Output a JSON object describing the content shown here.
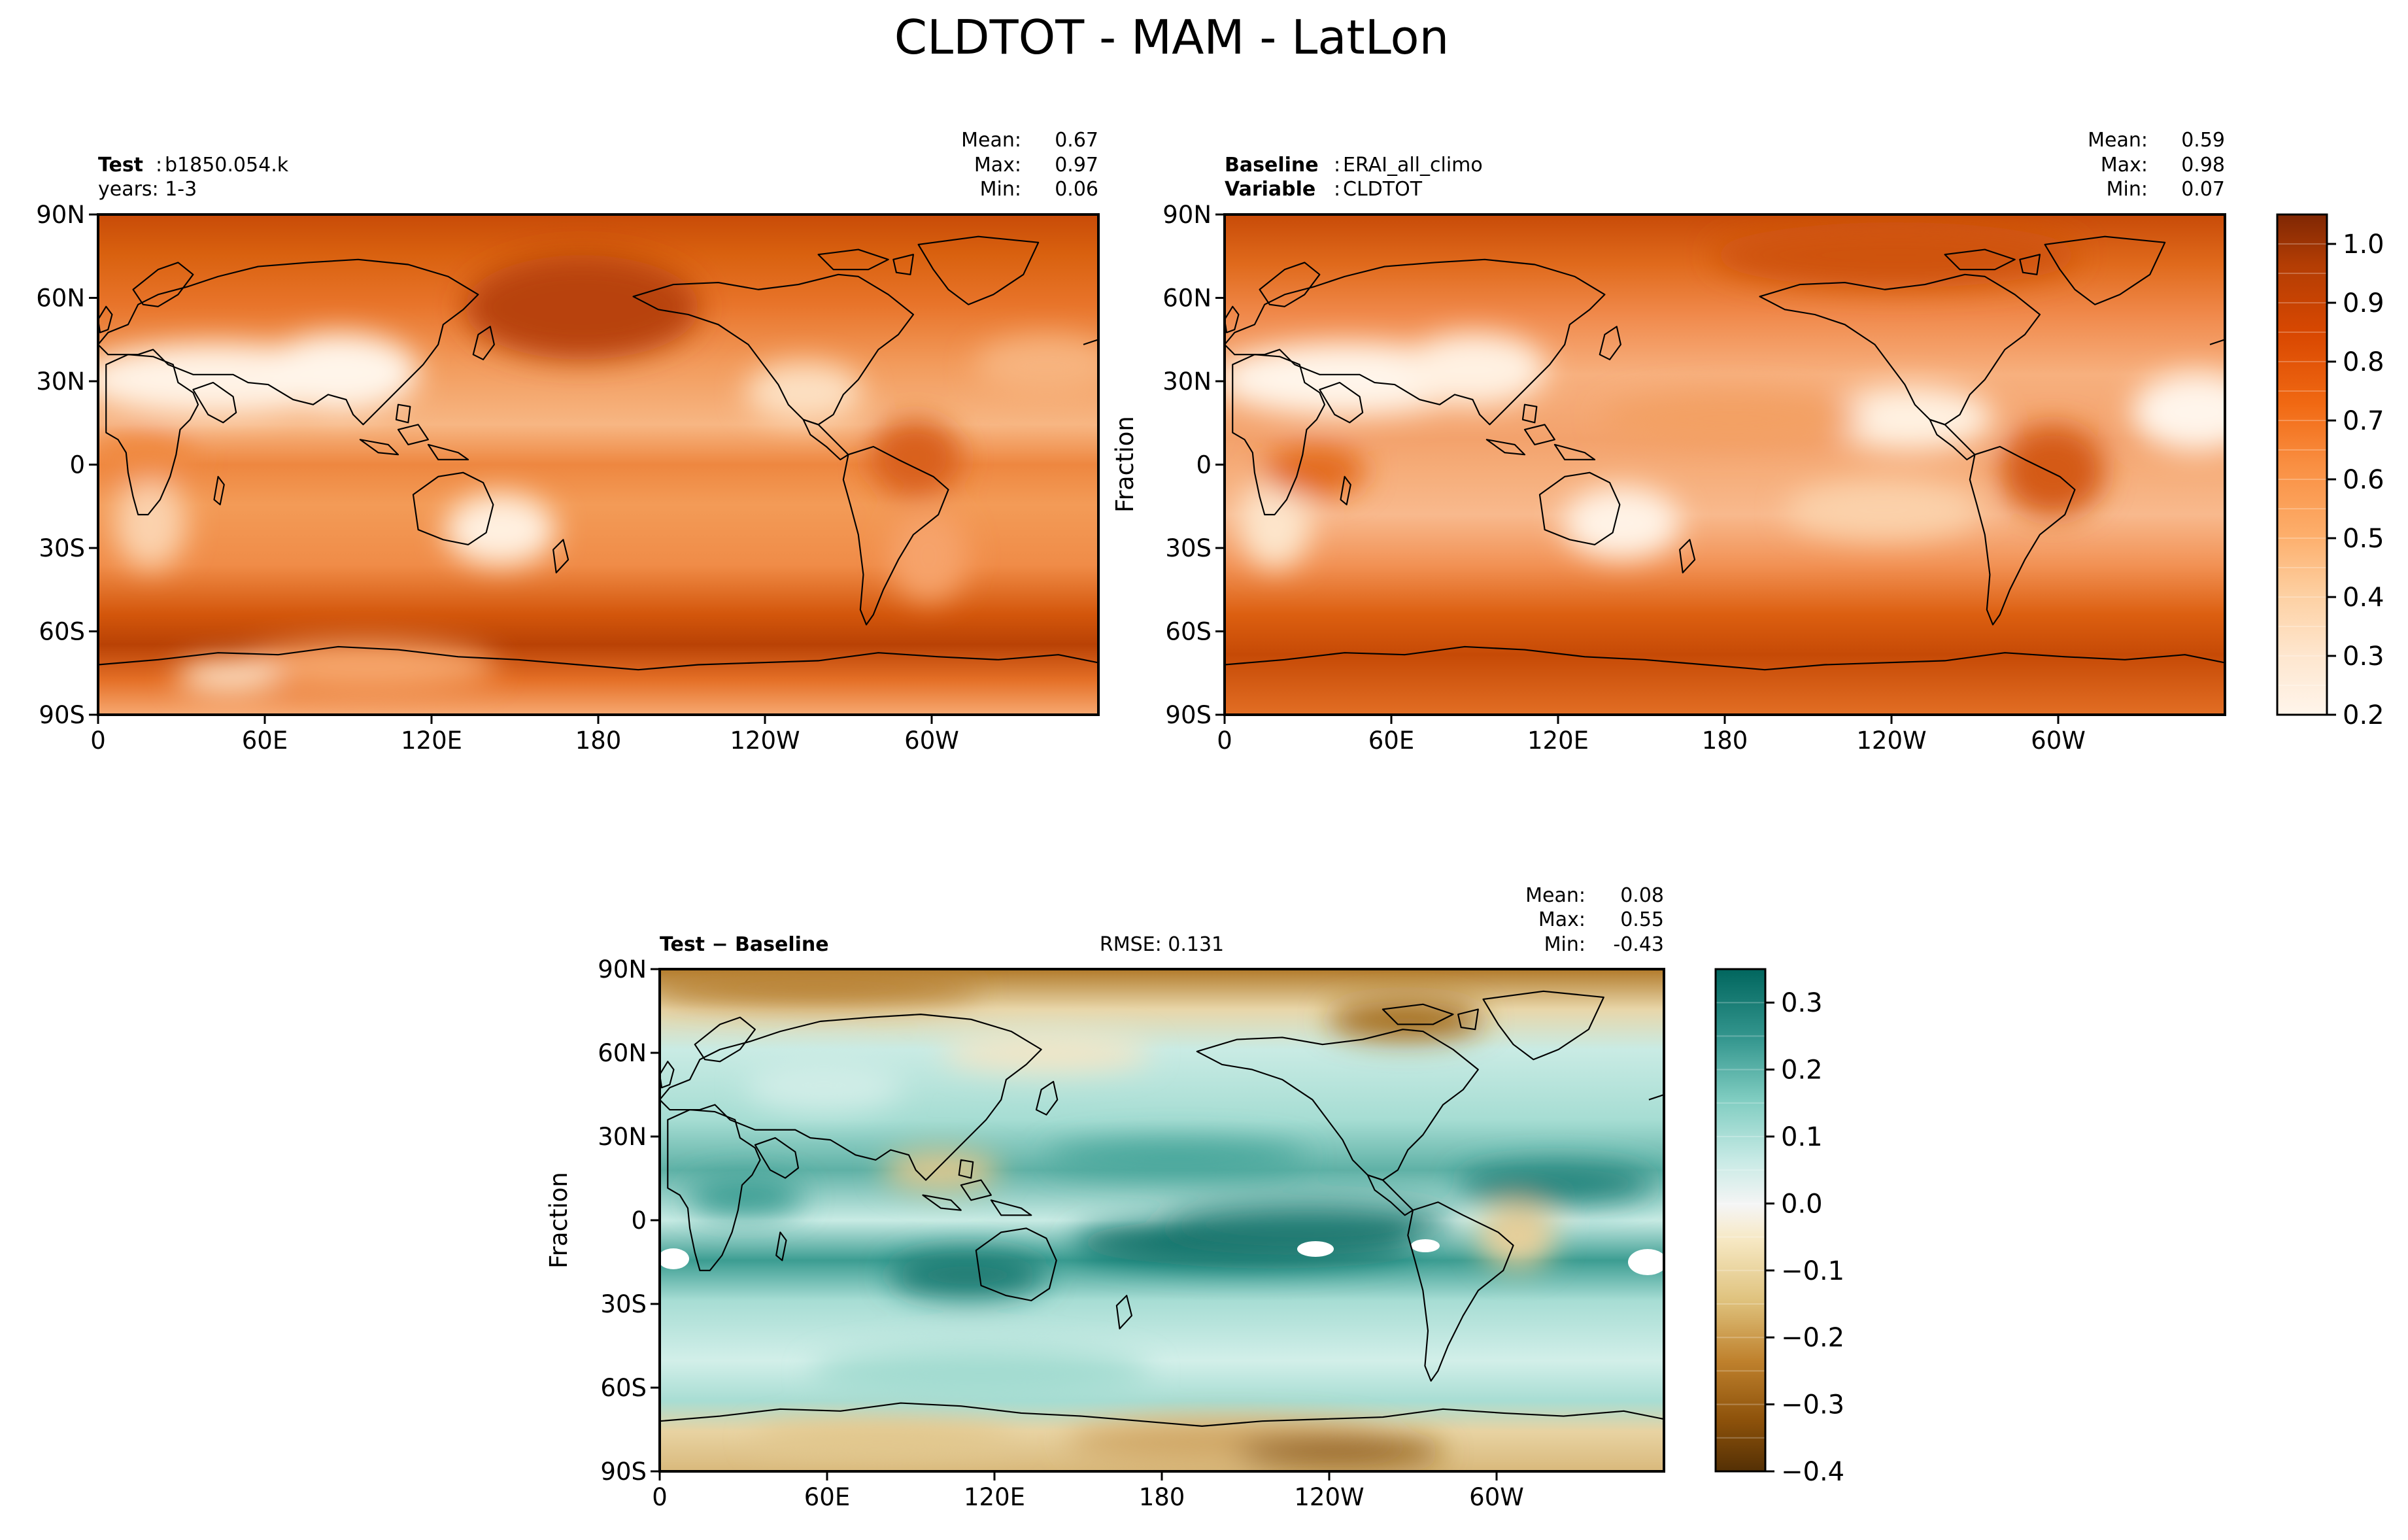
{
  "figure": {
    "title": "CLDTOT - MAM - LatLon"
  },
  "chart_data": [
    {
      "type": "heatmap",
      "panel": "test",
      "label_bold": "Test",
      "label_value": "b1850.054.k",
      "label_line2": "years: 1-3",
      "stats": {
        "mean_label": "Mean:",
        "mean": "0.67",
        "max_label": "Max:",
        "max": "0.97",
        "min_label": "Min:",
        "min": "0.06"
      },
      "ylabel": "",
      "xticks": [
        "0",
        "60E",
        "120E",
        "180",
        "120W",
        "60W"
      ],
      "yticks": [
        "90N",
        "60N",
        "30N",
        "0",
        "30S",
        "60S",
        "90S"
      ],
      "xlim": [
        0,
        360
      ],
      "ylim": [
        -90,
        90
      ],
      "colormap": "Oranges",
      "colorbar": "shared-with-baseline",
      "coastlines": true
    },
    {
      "type": "heatmap",
      "panel": "baseline",
      "label_bold": "Baseline",
      "label_value": "ERAI_all_climo",
      "label2_bold": "Variable",
      "label2_value": "CLDTOT",
      "stats": {
        "mean_label": "Mean:",
        "mean": "0.59",
        "max_label": "Max:",
        "max": "0.98",
        "min_label": "Min:",
        "min": "0.07"
      },
      "ylabel": "Fraction",
      "xticks": [
        "0",
        "60E",
        "120E",
        "180",
        "120W",
        "60W"
      ],
      "yticks": [
        "90N",
        "60N",
        "30N",
        "0",
        "30S",
        "60S",
        "90S"
      ],
      "xlim": [
        0,
        360
      ],
      "ylim": [
        -90,
        90
      ],
      "colormap": "Oranges",
      "colorbar": {
        "ticks": [
          "1.0",
          "0.9",
          "0.8",
          "0.7",
          "0.6",
          "0.5",
          "0.4",
          "0.3",
          "0.2"
        ],
        "range": [
          0.2,
          1.05
        ]
      },
      "coastlines": true
    },
    {
      "type": "heatmap",
      "panel": "difference",
      "label_bold": "Test − Baseline",
      "rmse": "RMSE: 0.131",
      "stats": {
        "mean_label": "Mean:",
        "mean": "0.08",
        "max_label": "Max:",
        "max": "0.55",
        "min_label": "Min:",
        "min": "-0.43"
      },
      "ylabel": "Fraction",
      "xticks": [
        "0",
        "60E",
        "120E",
        "180",
        "120W",
        "60W"
      ],
      "yticks": [
        "90N",
        "60N",
        "30N",
        "0",
        "30S",
        "60S",
        "90S"
      ],
      "xlim": [
        0,
        360
      ],
      "ylim": [
        -90,
        90
      ],
      "colormap": "BrBG",
      "colorbar": {
        "ticks": [
          "0.3",
          "0.2",
          "0.1",
          "0.0",
          "−0.1",
          "−0.2",
          "−0.3",
          "−0.4"
        ],
        "range": [
          -0.4,
          0.35
        ]
      },
      "coastlines": true
    }
  ]
}
